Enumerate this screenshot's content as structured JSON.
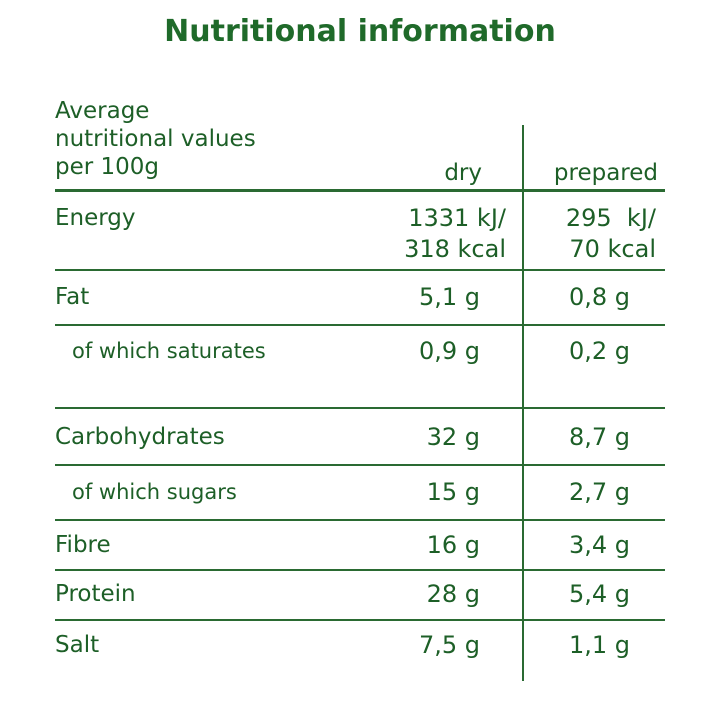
{
  "title": "Nutritional information",
  "table": {
    "header": {
      "label": [
        "Average",
        "nutritional values",
        "per 100g"
      ],
      "columns": [
        "dry",
        "prepared"
      ]
    },
    "rows": [
      {
        "label": "Energy",
        "dry": [
          "1331 kJ/",
          "318 kcal"
        ],
        "prepared": [
          "295  kJ/",
          "70 kcal"
        ]
      },
      {
        "label": "Fat",
        "dry": "5,1 g",
        "prepared": "0,8 g"
      },
      {
        "label": "of which saturates",
        "dry": "0,9 g",
        "prepared": "0,2 g"
      },
      {
        "label": "Carbohydrates",
        "dry": "32 g",
        "prepared": "8,7 g"
      },
      {
        "label": "of which sugars",
        "dry": "15 g",
        "prepared": "2,7 g"
      },
      {
        "label": "Fibre",
        "dry": "16 g",
        "prepared": "3,4 g"
      },
      {
        "label": "Protein",
        "dry": "28 g",
        "prepared": "5,4 g"
      },
      {
        "label": "Salt",
        "dry": "7,5 g",
        "prepared": "1,1 g"
      }
    ]
  }
}
